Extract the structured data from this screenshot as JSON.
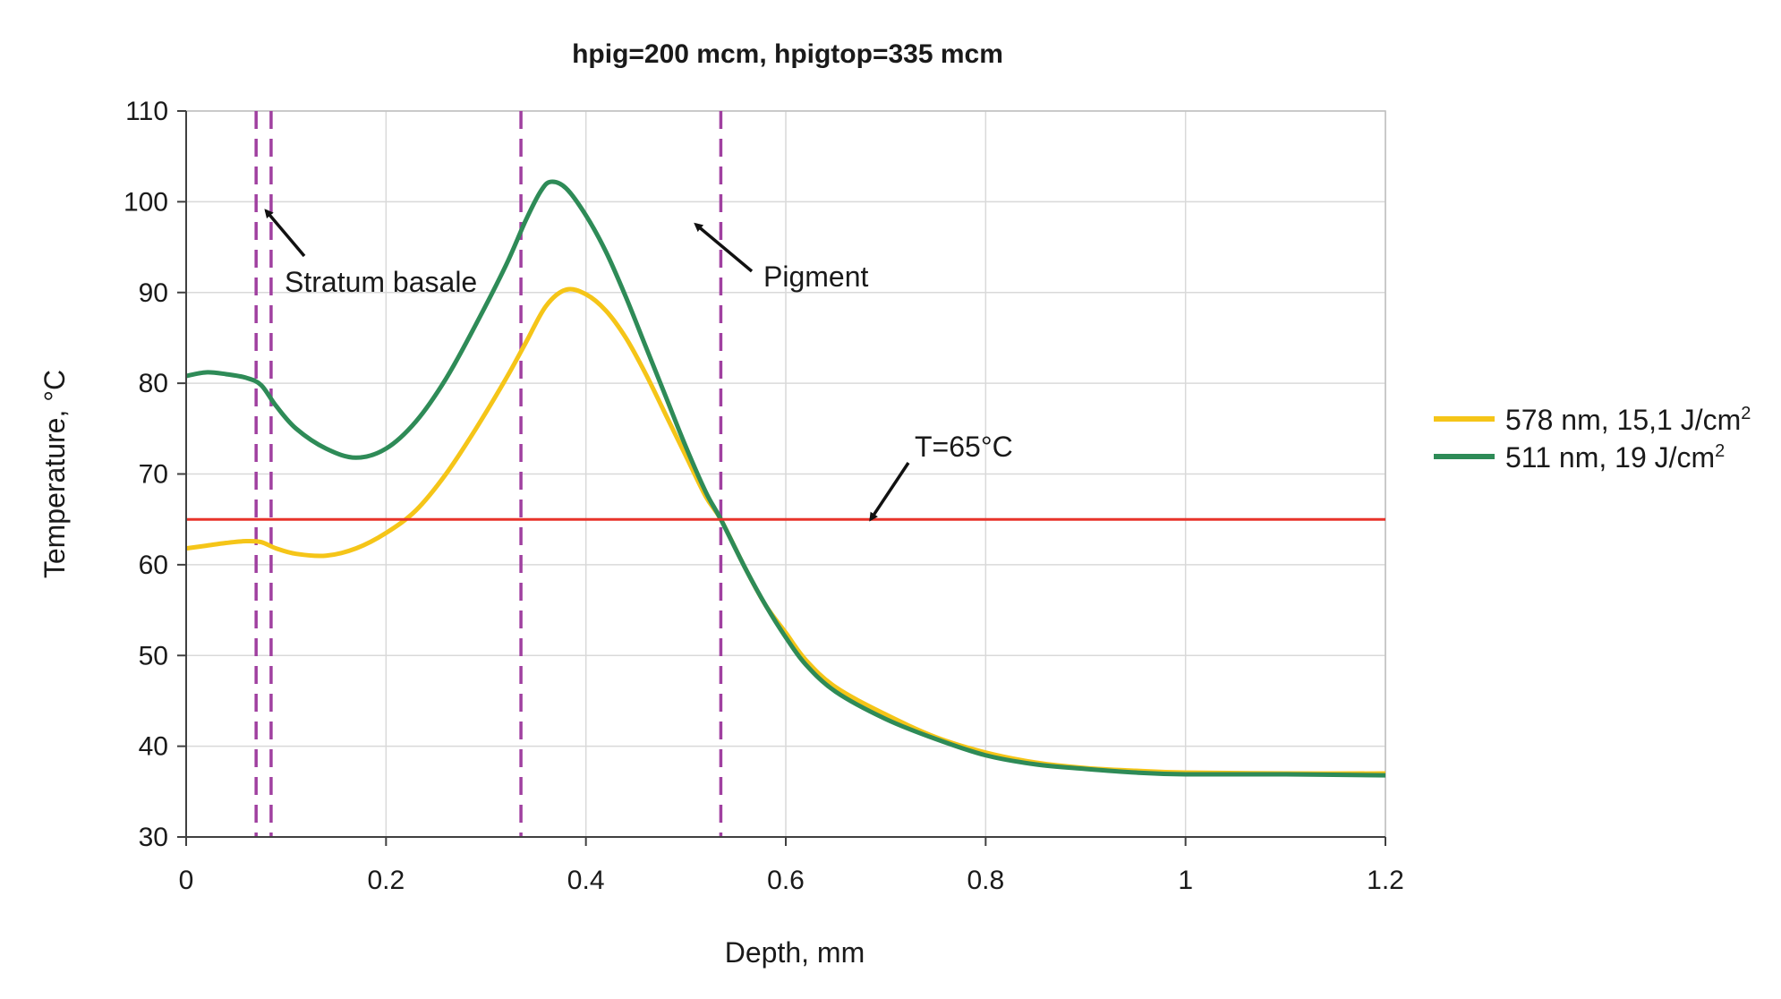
{
  "chart_data": {
    "type": "line",
    "title": "hpig=200 mcm, hpigtop=335 mcm",
    "xlabel": "Depth, mm",
    "ylabel": "Temperature, °C",
    "xlim": [
      0,
      1.2
    ],
    "ylim": [
      30,
      110
    ],
    "xticks": [
      "0",
      "0.2",
      "0.4",
      "0.6",
      "0.8",
      "1",
      "1.2"
    ],
    "yticks": [
      "30",
      "40",
      "50",
      "60",
      "70",
      "80",
      "90",
      "100",
      "110"
    ],
    "grid": true,
    "legend_position": "right",
    "series": [
      {
        "name": "578 nm, 15,1 J/cm",
        "name_sup": "2",
        "color": "#f5c518",
        "x": [
          0,
          0.02,
          0.04,
          0.06,
          0.075,
          0.09,
          0.11,
          0.14,
          0.17,
          0.2,
          0.23,
          0.26,
          0.29,
          0.32,
          0.34,
          0.36,
          0.38,
          0.4,
          0.42,
          0.44,
          0.46,
          0.48,
          0.5,
          0.52,
          0.535,
          0.56,
          0.58,
          0.6,
          0.62,
          0.65,
          0.7,
          0.75,
          0.8,
          0.85,
          0.9,
          0.95,
          1.0,
          1.1,
          1.2
        ],
        "y": [
          61.8,
          62.1,
          62.4,
          62.6,
          62.5,
          61.8,
          61.2,
          61.0,
          61.8,
          63.5,
          66.0,
          70.0,
          75.0,
          80.5,
          84.5,
          88.5,
          90.3,
          89.8,
          88.0,
          85.0,
          81.0,
          76.5,
          72.0,
          67.5,
          65.0,
          59.5,
          55.5,
          52.5,
          49.5,
          46.5,
          43.5,
          41.0,
          39.3,
          38.2,
          37.6,
          37.3,
          37.1,
          37.0,
          37.0
        ]
      },
      {
        "name": "511 nm, 19 J/cm",
        "name_sup": "2",
        "color": "#2e8b57",
        "x": [
          0,
          0.02,
          0.04,
          0.06,
          0.075,
          0.09,
          0.11,
          0.14,
          0.17,
          0.2,
          0.23,
          0.26,
          0.29,
          0.32,
          0.34,
          0.355,
          0.365,
          0.38,
          0.4,
          0.42,
          0.44,
          0.46,
          0.48,
          0.5,
          0.52,
          0.535,
          0.56,
          0.58,
          0.6,
          0.62,
          0.65,
          0.7,
          0.75,
          0.8,
          0.85,
          0.9,
          0.95,
          1.0,
          1.1,
          1.2
        ],
        "y": [
          80.8,
          81.2,
          81.0,
          80.6,
          79.8,
          77.5,
          75.0,
          72.8,
          71.8,
          72.8,
          75.8,
          80.5,
          86.5,
          93.0,
          98.0,
          101.2,
          102.2,
          101.5,
          98.5,
          94.5,
          89.5,
          84.0,
          78.5,
          73.0,
          68.0,
          65.0,
          59.5,
          55.5,
          52.0,
          49.0,
          46.0,
          43.0,
          40.8,
          39.0,
          38.0,
          37.5,
          37.1,
          36.9,
          36.9,
          36.8
        ]
      }
    ],
    "reference_line": {
      "y": 65,
      "color": "#e8332a",
      "label": "T=65°C"
    },
    "dashed_lines": {
      "x": [
        0.07,
        0.085,
        0.335,
        0.535
      ],
      "color": "#a040a0"
    },
    "annotations": [
      {
        "text": "Stratum basale",
        "x": 0.1,
        "y": 91,
        "arrow_to": [
          0.08,
          99
        ]
      },
      {
        "text": "Pigment",
        "x": 0.58,
        "y": 92,
        "arrow_to": [
          0.51,
          97.5
        ]
      },
      {
        "text": "T=65°C",
        "x": 0.76,
        "y": 71,
        "arrow_to": [
          0.685,
          65
        ]
      }
    ]
  }
}
